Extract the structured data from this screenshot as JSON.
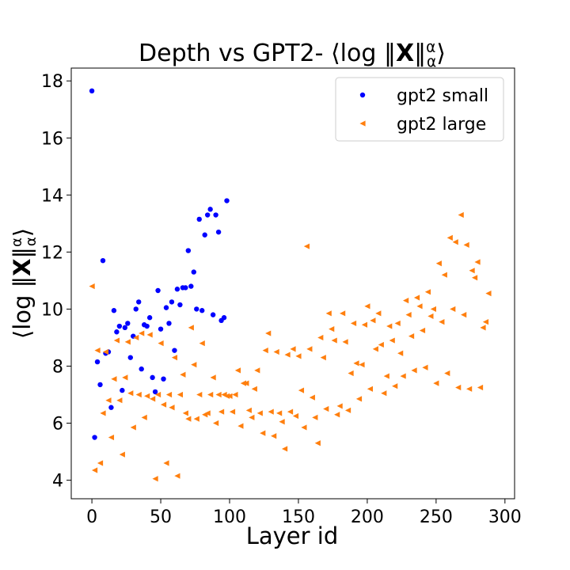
{
  "chart_data": {
    "type": "scatter",
    "title": "Depth vs GPT2- ⟨log ‖X‖αα⟩",
    "xlabel": "Layer id",
    "ylabel": "⟨log ‖X‖αα⟩",
    "xlim": [
      -15,
      307
    ],
    "ylim": [
      3.35,
      18.45
    ],
    "xticks": [
      0,
      50,
      100,
      150,
      200,
      250,
      300
    ],
    "yticks": [
      4,
      6,
      8,
      10,
      12,
      14,
      16,
      18
    ],
    "grid": false,
    "legend": "top-right",
    "series": [
      {
        "name": "gpt2 small",
        "color": "#0000ff",
        "marker": "circle",
        "points": [
          [
            0,
            17.65
          ],
          [
            2,
            5.5
          ],
          [
            4,
            8.15
          ],
          [
            6,
            7.35
          ],
          [
            8,
            11.7
          ],
          [
            10,
            8.45
          ],
          [
            12,
            8.5
          ],
          [
            14,
            6.55
          ],
          [
            16,
            9.95
          ],
          [
            18,
            9.2
          ],
          [
            20,
            9.4
          ],
          [
            22,
            7.15
          ],
          [
            24,
            9.35
          ],
          [
            26,
            9.5
          ],
          [
            28,
            8.3
          ],
          [
            30,
            9.05
          ],
          [
            32,
            10.0
          ],
          [
            34,
            10.25
          ],
          [
            36,
            7.9
          ],
          [
            38,
            9.45
          ],
          [
            40,
            9.4
          ],
          [
            42,
            9.7
          ],
          [
            44,
            7.6
          ],
          [
            46,
            7.1
          ],
          [
            48,
            10.65
          ],
          [
            50,
            9.3
          ],
          [
            52,
            7.55
          ],
          [
            54,
            10.05
          ],
          [
            56,
            9.5
          ],
          [
            58,
            10.25
          ],
          [
            60,
            8.55
          ],
          [
            62,
            10.7
          ],
          [
            64,
            10.15
          ],
          [
            66,
            10.75
          ],
          [
            68,
            10.75
          ],
          [
            70,
            12.05
          ],
          [
            72,
            10.8
          ],
          [
            74,
            11.3
          ],
          [
            76,
            10.0
          ],
          [
            78,
            13.15
          ],
          [
            80,
            9.95
          ],
          [
            82,
            12.6
          ],
          [
            84,
            13.3
          ],
          [
            86,
            13.5
          ],
          [
            88,
            9.8
          ],
          [
            90,
            13.3
          ],
          [
            92,
            12.7
          ],
          [
            94,
            9.6
          ],
          [
            96,
            9.7
          ],
          [
            98,
            13.8
          ]
        ]
      },
      {
        "name": "gpt2 large",
        "color": "#ff7f0e",
        "marker": "triangle-left",
        "points": [
          [
            0,
            10.8
          ],
          [
            2,
            4.35
          ],
          [
            4,
            8.55
          ],
          [
            6,
            4.6
          ],
          [
            8,
            6.35
          ],
          [
            10,
            8.5
          ],
          [
            12,
            6.8
          ],
          [
            14,
            5.5
          ],
          [
            16,
            7.55
          ],
          [
            18,
            8.9
          ],
          [
            20,
            6.8
          ],
          [
            22,
            4.9
          ],
          [
            24,
            7.6
          ],
          [
            26,
            8.85
          ],
          [
            28,
            7.05
          ],
          [
            30,
            5.85
          ],
          [
            32,
            9.0
          ],
          [
            34,
            7.0
          ],
          [
            36,
            9.15
          ],
          [
            38,
            6.2
          ],
          [
            40,
            6.95
          ],
          [
            42,
            9.1
          ],
          [
            44,
            6.85
          ],
          [
            46,
            4.05
          ],
          [
            48,
            7.0
          ],
          [
            50,
            8.8
          ],
          [
            52,
            6.65
          ],
          [
            54,
            4.6
          ],
          [
            56,
            7.0
          ],
          [
            58,
            6.55
          ],
          [
            60,
            8.3
          ],
          [
            62,
            4.15
          ],
          [
            64,
            7.0
          ],
          [
            66,
            7.7
          ],
          [
            68,
            6.35
          ],
          [
            70,
            6.15
          ],
          [
            72,
            9.35
          ],
          [
            74,
            8.05
          ],
          [
            76,
            6.15
          ],
          [
            78,
            7.0
          ],
          [
            80,
            8.8
          ],
          [
            82,
            6.3
          ],
          [
            84,
            6.35
          ],
          [
            86,
            7.0
          ],
          [
            88,
            7.6
          ],
          [
            90,
            6.0
          ],
          [
            92,
            7.0
          ],
          [
            94,
            6.4
          ],
          [
            96,
            7.0
          ],
          [
            98,
            6.95
          ],
          [
            100,
            6.95
          ],
          [
            102,
            6.4
          ],
          [
            104,
            7.0
          ],
          [
            106,
            7.85
          ],
          [
            108,
            5.9
          ],
          [
            110,
            7.4
          ],
          [
            112,
            7.4
          ],
          [
            114,
            6.45
          ],
          [
            116,
            6.2
          ],
          [
            118,
            7.2
          ],
          [
            120,
            7.85
          ],
          [
            122,
            6.35
          ],
          [
            124,
            5.65
          ],
          [
            126,
            8.55
          ],
          [
            128,
            9.15
          ],
          [
            130,
            6.4
          ],
          [
            132,
            5.55
          ],
          [
            134,
            8.5
          ],
          [
            136,
            6.35
          ],
          [
            138,
            6.05
          ],
          [
            140,
            5.1
          ],
          [
            142,
            8.4
          ],
          [
            144,
            6.4
          ],
          [
            146,
            8.6
          ],
          [
            148,
            6.25
          ],
          [
            150,
            8.35
          ],
          [
            152,
            7.15
          ],
          [
            154,
            5.85
          ],
          [
            156,
            12.2
          ],
          [
            158,
            8.6
          ],
          [
            160,
            6.9
          ],
          [
            162,
            6.2
          ],
          [
            164,
            5.3
          ],
          [
            166,
            9.0
          ],
          [
            168,
            8.3
          ],
          [
            170,
            6.5
          ],
          [
            172,
            9.85
          ],
          [
            174,
            9.3
          ],
          [
            176,
            8.9
          ],
          [
            178,
            6.3
          ],
          [
            180,
            6.6
          ],
          [
            182,
            9.85
          ],
          [
            184,
            8.85
          ],
          [
            186,
            6.45
          ],
          [
            188,
            7.75
          ],
          [
            190,
            9.5
          ],
          [
            192,
            8.1
          ],
          [
            194,
            6.85
          ],
          [
            196,
            8.05
          ],
          [
            198,
            9.45
          ],
          [
            200,
            10.1
          ],
          [
            202,
            7.2
          ],
          [
            204,
            9.6
          ],
          [
            206,
            8.6
          ],
          [
            208,
            9.85
          ],
          [
            210,
            8.75
          ],
          [
            212,
            7.05
          ],
          [
            214,
            7.65
          ],
          [
            216,
            9.4
          ],
          [
            218,
            8.9
          ],
          [
            220,
            7.3
          ],
          [
            222,
            9.5
          ],
          [
            224,
            8.45
          ],
          [
            226,
            7.65
          ],
          [
            228,
            10.3
          ],
          [
            230,
            9.8
          ],
          [
            232,
            9.05
          ],
          [
            234,
            7.85
          ],
          [
            236,
            10.4
          ],
          [
            238,
            10.1
          ],
          [
            240,
            9.25
          ],
          [
            242,
            7.95
          ],
          [
            244,
            10.6
          ],
          [
            246,
            9.75
          ],
          [
            248,
            10.0
          ],
          [
            250,
            7.4
          ],
          [
            252,
            11.6
          ],
          [
            254,
            9.55
          ],
          [
            256,
            11.2
          ],
          [
            258,
            7.75
          ],
          [
            260,
            12.5
          ],
          [
            262,
            10.0
          ],
          [
            264,
            12.35
          ],
          [
            266,
            7.25
          ],
          [
            268,
            13.3
          ],
          [
            270,
            9.8
          ],
          [
            272,
            12.25
          ],
          [
            274,
            7.2
          ],
          [
            276,
            11.35
          ],
          [
            278,
            11.1
          ],
          [
            280,
            11.65
          ],
          [
            282,
            7.25
          ],
          [
            284,
            9.35
          ],
          [
            286,
            9.55
          ],
          [
            288,
            10.55
          ]
        ]
      }
    ]
  }
}
